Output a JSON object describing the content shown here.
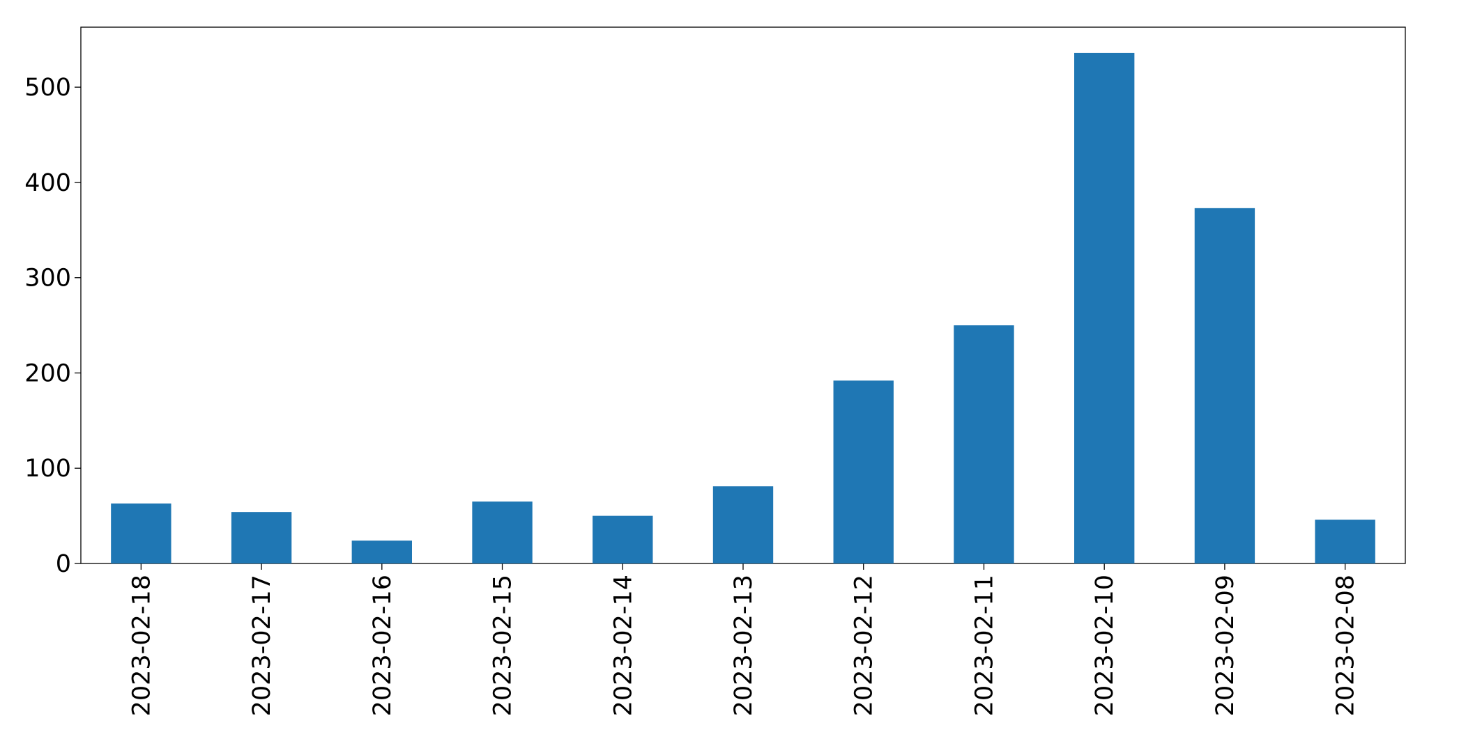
{
  "chart_data": {
    "type": "bar",
    "categories": [
      "2023-02-18",
      "2023-02-17",
      "2023-02-16",
      "2023-02-15",
      "2023-02-14",
      "2023-02-13",
      "2023-02-12",
      "2023-02-11",
      "2023-02-10",
      "2023-02-09",
      "2023-02-08"
    ],
    "values": [
      63,
      54,
      24,
      65,
      50,
      81,
      192,
      250,
      536,
      373,
      46
    ],
    "color": "#1f77b4",
    "ylim": [
      0,
      563
    ],
    "yticks": [
      0,
      100,
      200,
      300,
      400,
      500
    ],
    "grid": false
  }
}
